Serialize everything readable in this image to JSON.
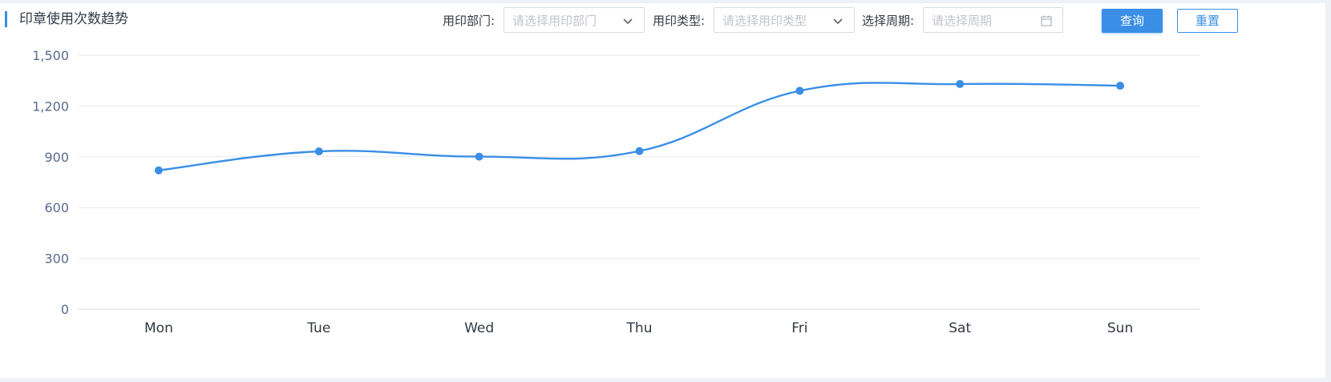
{
  "header": {
    "title": "印章使用次数趋势"
  },
  "filters": {
    "department_label": "用印部门:",
    "department_placeholder": "请选择用印部门",
    "type_label": "用印类型:",
    "type_placeholder": "请选择用印类型",
    "period_label": "选择周期:",
    "period_placeholder": "请选择周期"
  },
  "buttons": {
    "query_label": "查询",
    "reset_label": "重置"
  },
  "colors": {
    "accent": "#3a8ee6",
    "line": "#3a8ee6",
    "grid": "#e6e9ef"
  },
  "icons": {
    "department_dropdown": "chevron-down-icon",
    "type_dropdown": "chevron-down-icon",
    "period_picker": "calendar-icon"
  },
  "chart_data": {
    "type": "line",
    "title": "",
    "xlabel": "",
    "ylabel": "",
    "categories": [
      "Mon",
      "Tue",
      "Wed",
      "Thu",
      "Fri",
      "Sat",
      "Sun"
    ],
    "values": [
      820,
      932,
      901,
      934,
      1290,
      1330,
      1320
    ],
    "ylim": [
      0,
      1500
    ],
    "yticks": [
      0,
      300,
      600,
      900,
      1200,
      1500
    ],
    "ytick_labels": [
      "0",
      "300",
      "600",
      "900",
      "1,200",
      "1,500"
    ],
    "smooth": true,
    "grid": true,
    "legend": "none"
  }
}
